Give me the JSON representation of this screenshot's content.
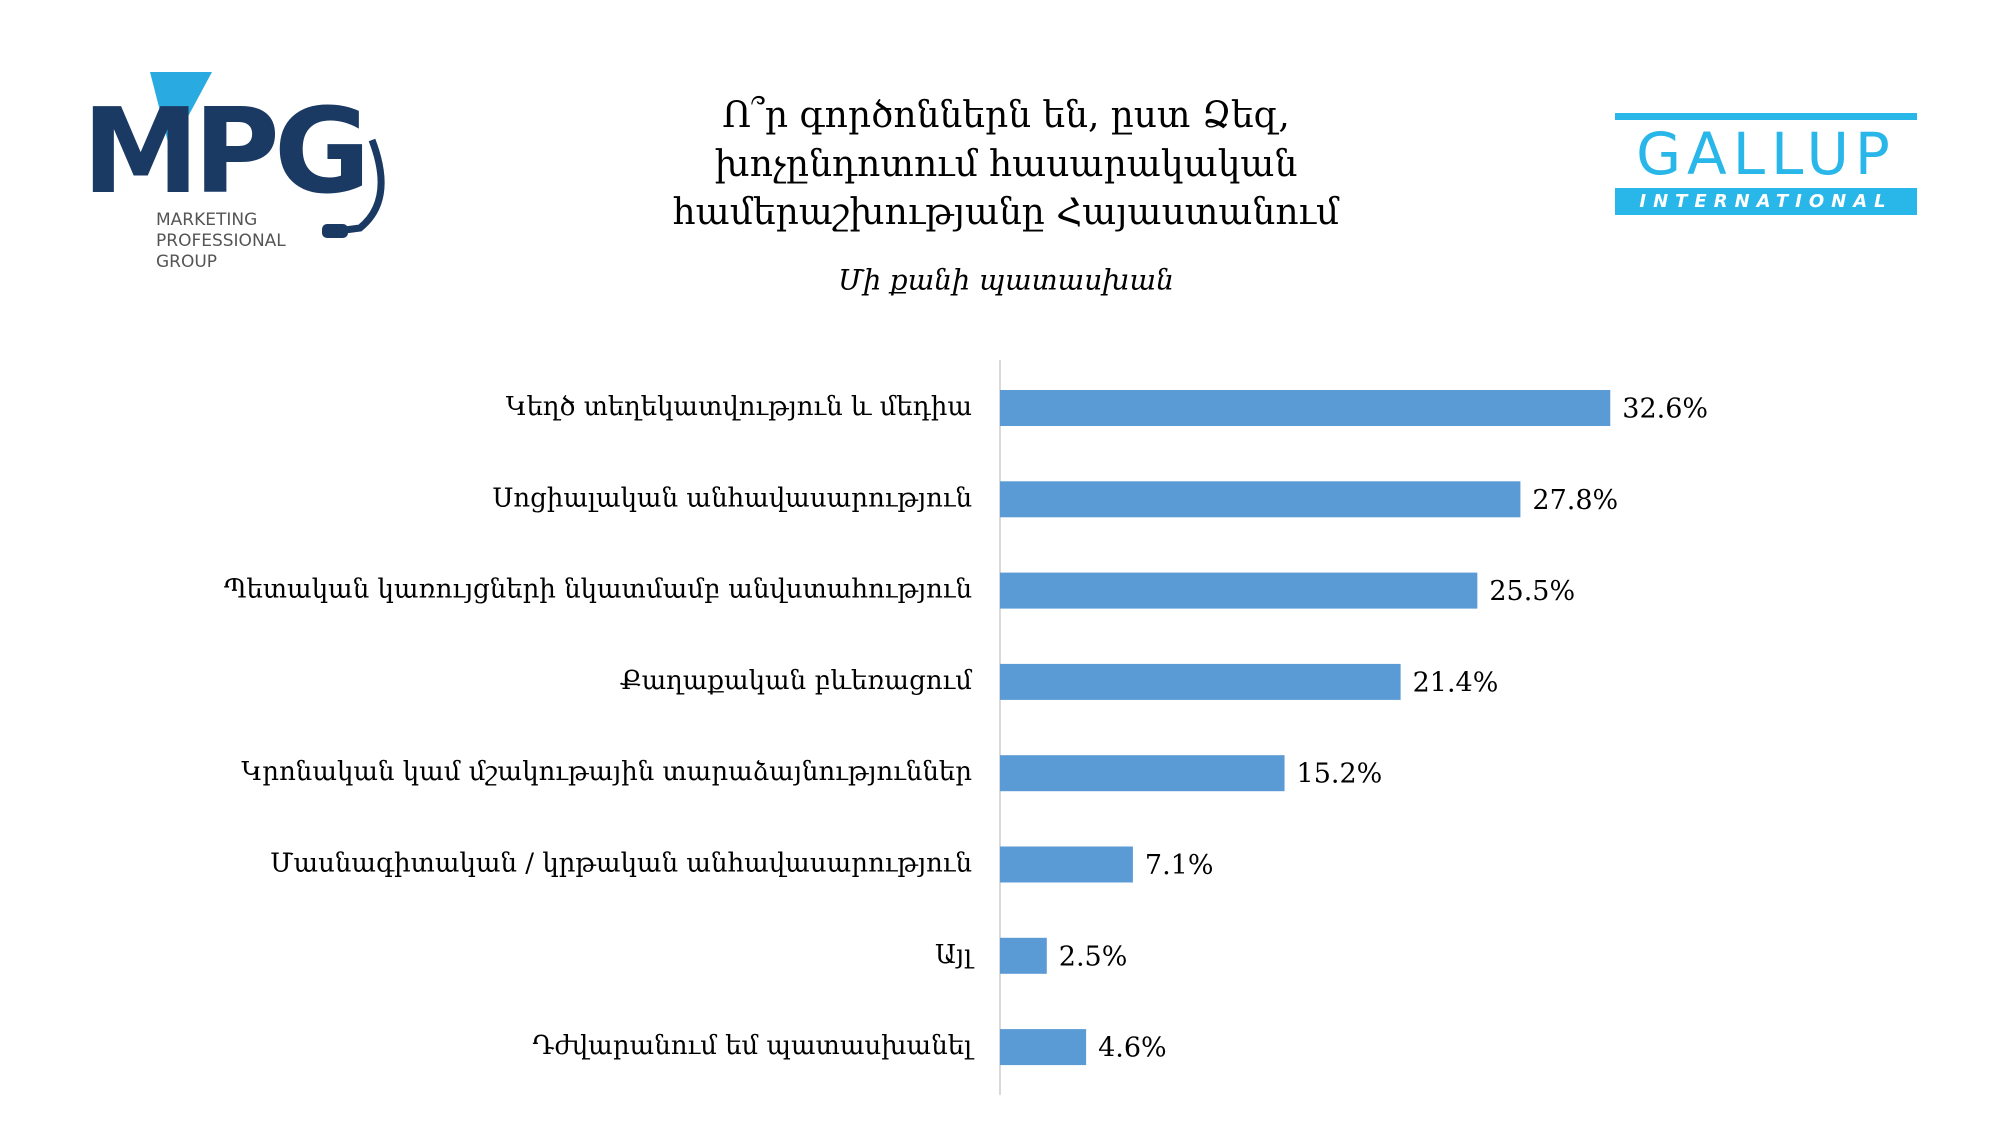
{
  "chart_data": {
    "type": "bar",
    "orientation": "horizontal",
    "title_lines": [
      "Ո՞ր գործոններն են, ըստ Ձեզ,",
      "խոչընդոտում հասարակական",
      "համերաշխությանը Հայաստանում"
    ],
    "subtitle": "Մի քանի պատասխան",
    "categories": [
      "Կեղծ տեղեկատվություն և մեդիա",
      "Սոցիալական անհավասարություն",
      "Պետական կառույցների նկատմամբ անվստահություն",
      "Քաղաքական բևեռացում",
      "Կրոնական կամ մշակութային տարաձայնություններ",
      "Մասնագիտական / կրթական անհավասարություն",
      "Այլ",
      "Դժվարանում եմ պատասխանել"
    ],
    "values": [
      32.6,
      27.8,
      25.5,
      21.4,
      15.2,
      7.1,
      2.5,
      4.6
    ],
    "value_labels": [
      "32.6%",
      "27.8%",
      "25.5%",
      "21.4%",
      "15.2%",
      "7.1%",
      "2.5%",
      "4.6%"
    ],
    "color": "#5b9bd5"
  },
  "logos": {
    "left": {
      "mark": "MPG",
      "lines": [
        "MARKETING",
        "PROFESSIONAL",
        "GROUP"
      ]
    },
    "right": {
      "name": "GALLUP",
      "tagline": "INTERNATIONAL"
    }
  }
}
